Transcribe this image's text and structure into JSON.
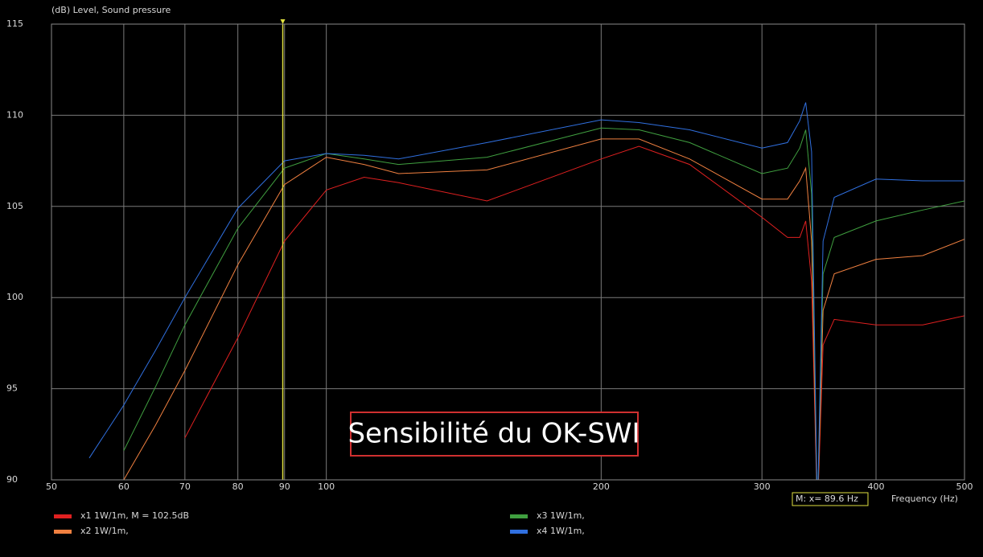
{
  "chart_data": {
    "type": "line",
    "ylabel": "(dB)  Level, Sound pressure",
    "xlabel": "Frequency  (Hz)",
    "xscale": "log",
    "grid": true,
    "xlim": [
      50,
      500
    ],
    "ylim": [
      90,
      115
    ],
    "xticks": [
      50,
      60,
      70,
      80,
      90,
      100,
      200,
      300,
      400,
      500
    ],
    "yticks": [
      90,
      95,
      100,
      105,
      110,
      115
    ],
    "x": [
      50,
      55,
      60,
      65,
      70,
      80,
      90,
      100,
      110,
      120,
      150,
      200,
      220,
      250,
      300,
      320,
      330,
      335,
      340,
      345,
      350,
      360,
      400,
      450,
      500
    ],
    "series": [
      {
        "name": "x1 1W/1m, M = 102.5dB",
        "color": "#e02020",
        "values": [
          null,
          null,
          null,
          null,
          92.3,
          97.8,
          103.1,
          105.9,
          106.6,
          106.3,
          105.3,
          107.6,
          108.3,
          107.3,
          104.4,
          103.3,
          103.3,
          104.2,
          100.9,
          88,
          97.4,
          98.8,
          98.5,
          98.5,
          99.0
        ]
      },
      {
        "name": "x2 1W/1m,",
        "color": "#f08040",
        "values": [
          null,
          null,
          90,
          93,
          96,
          101.8,
          106.2,
          107.7,
          107.3,
          106.8,
          107.0,
          108.7,
          108.7,
          107.6,
          105.4,
          105.4,
          106.4,
          107.1,
          103.1,
          88,
          99.3,
          101.3,
          102.1,
          102.3,
          103.2
        ]
      },
      {
        "name": "x3 1W/1m,",
        "color": "#40a040",
        "values": [
          null,
          null,
          91.6,
          95.1,
          98.5,
          103.8,
          107.1,
          107.9,
          107.6,
          107.3,
          107.7,
          109.3,
          109.2,
          108.5,
          106.8,
          107.1,
          108.2,
          109.2,
          105.7,
          88,
          101.3,
          103.3,
          104.2,
          104.8,
          105.3
        ]
      },
      {
        "name": "x4 1W/1m,",
        "color": "#3070e0",
        "values": [
          null,
          91.2,
          94.1,
          97.1,
          100,
          104.9,
          107.5,
          107.9,
          107.8,
          107.6,
          108.5,
          109.75,
          109.6,
          109.2,
          108.2,
          108.5,
          109.7,
          110.7,
          108,
          88,
          103.1,
          105.5,
          106.5,
          106.4,
          106.4
        ]
      }
    ],
    "marker": {
      "x": 89.6,
      "label": "M:  x= 89.6 Hz",
      "color": "#e0e040"
    },
    "annotation": "Sensibilité du OK-SWI"
  }
}
